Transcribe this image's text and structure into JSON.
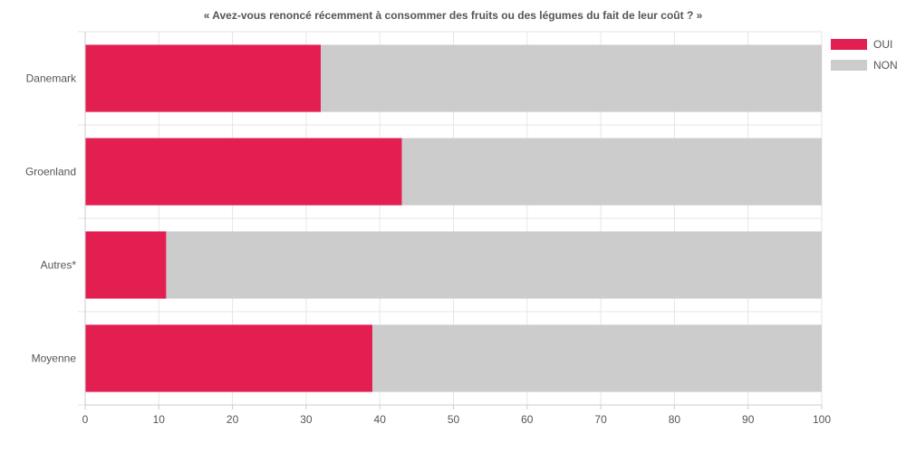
{
  "chart_data": {
    "type": "bar",
    "orientation": "horizontal",
    "stacked": true,
    "title": "« Avez-vous renoncé récemment à consommer des fruits ou des légumes du fait de leur coût ? »",
    "categories": [
      "Danemark",
      "Groenland",
      "Autres*",
      "Moyenne"
    ],
    "series": [
      {
        "name": "OUI",
        "color": "#e31f52",
        "values": [
          32,
          43,
          11,
          39
        ]
      },
      {
        "name": "NON",
        "color": "#cccccc",
        "values": [
          68,
          57,
          89,
          61
        ]
      }
    ],
    "xlim": [
      0,
      100
    ],
    "xticks": [
      "0",
      "10",
      "20",
      "30",
      "40",
      "50",
      "60",
      "70",
      "80",
      "90",
      "100"
    ],
    "grid": true,
    "legend_position": "top-right"
  }
}
